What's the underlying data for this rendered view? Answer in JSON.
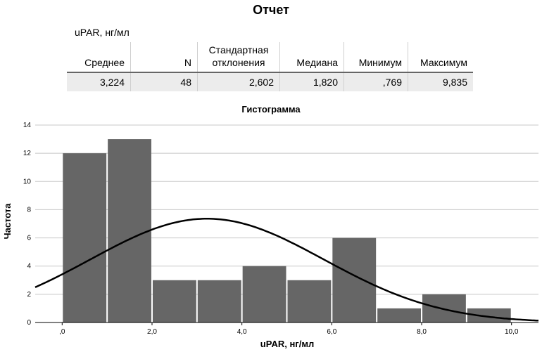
{
  "report": {
    "title": "Отчет",
    "variable": "uPAR, нг/мл",
    "columns": [
      "Среднее",
      "N",
      "Стандартная отклонения",
      "Медиана",
      "Минимум",
      "Максимум"
    ],
    "values": [
      "3,224",
      "48",
      "2,602",
      "1,820",
      ",769",
      "9,835"
    ]
  },
  "chart_data": {
    "type": "bar",
    "title": "Гистограмма",
    "xlabel": "uPAR, нг/мл",
    "ylabel": "Частота",
    "bins": [
      [
        0.0,
        1.0
      ],
      [
        1.0,
        2.0
      ],
      [
        2.0,
        3.0
      ],
      [
        3.0,
        4.0
      ],
      [
        4.0,
        5.0
      ],
      [
        5.0,
        6.0
      ],
      [
        6.0,
        7.0
      ],
      [
        7.0,
        8.0
      ],
      [
        8.0,
        9.0
      ],
      [
        9.0,
        10.0
      ]
    ],
    "values": [
      12,
      13,
      3,
      3,
      4,
      3,
      6,
      1,
      2,
      1
    ],
    "xlim": [
      -0.6,
      10.6
    ],
    "ylim": [
      0,
      14
    ],
    "x_ticks": [
      0,
      2,
      4,
      6,
      8,
      10
    ],
    "x_tick_labels": [
      ",0",
      "2,0",
      "4,0",
      "6,0",
      "8,0",
      "10,0"
    ],
    "y_ticks": [
      0,
      2,
      4,
      6,
      8,
      10,
      12,
      14
    ],
    "normal_curve": {
      "mean": 3.224,
      "sd": 2.602,
      "n": 48,
      "bin_width": 1.0
    },
    "bar_color": "#666666",
    "curve_color": "#000000",
    "grid": true
  }
}
